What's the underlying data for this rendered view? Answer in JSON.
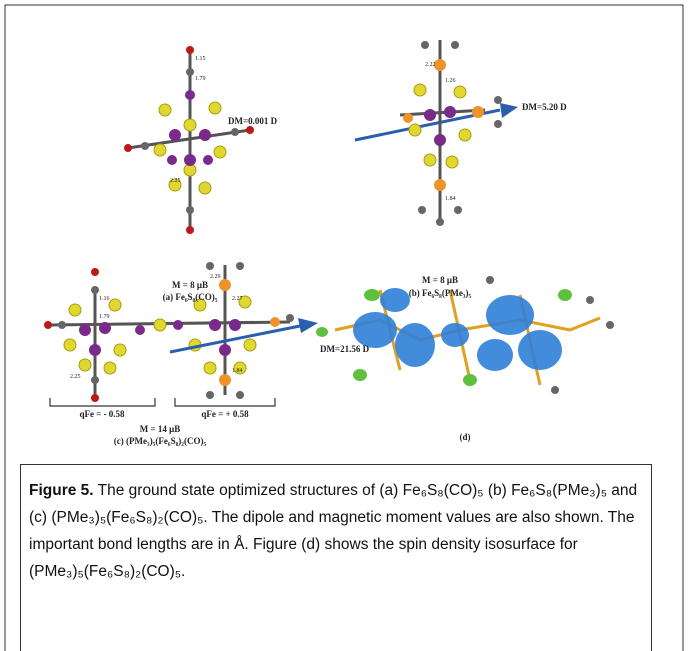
{
  "panels": [
    {
      "bonds": [
        "1.15",
        "1.79",
        "2.25"
      ],
      "dipole": "DM=0.001 D",
      "moment": "M = 8 μB",
      "caption": "(a) Fe₆S₈(CO)₅"
    },
    {
      "bonds": [
        "2.22",
        "1.26",
        "1.84"
      ],
      "dipole": "DM=5.20 D",
      "moment": "M = 8 μB",
      "caption": "(b) Fe₆S₈(PMe₃)₅"
    },
    {
      "bonds": [
        "1.16",
        "1.79",
        "2.29",
        "2.27",
        "2.25",
        "1.84"
      ],
      "dipole": "DM=21.56 D",
      "charges": [
        "qFe = - 0.58",
        "qFe = + 0.58"
      ],
      "moment": "M = 14 μB",
      "caption": "(c) (PMe₃)₅(Fe₆S₈)₂(CO)₅"
    },
    {
      "caption": "(d)"
    }
  ],
  "caption": {
    "label": "Figure 5.",
    "text": "The ground state optimized structures of (a) Fe₆S₈(CO)₅ (b) Fe₆S₈(PMe₃)₅ and (c) (PMe₃)₅(Fe₆S₈)₂(CO)₅. The dipole and magnetic moment values are also shown. The important bond lengths are in Å. Figure (d) shows the spin density isosurface for (PMe₃)₅(Fe₆S₈)₂(CO)₅."
  }
}
